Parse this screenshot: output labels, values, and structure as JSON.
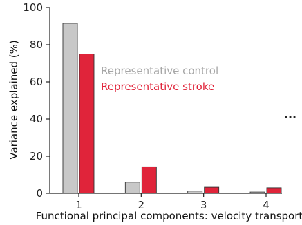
{
  "chart_data": {
    "type": "bar",
    "title": "",
    "xlabel": "Functional principal components: velocity transport",
    "ylabel": "Variance explained (%)",
    "categories": [
      "1",
      "2",
      "3",
      "4"
    ],
    "ylim": [
      0,
      100
    ],
    "yticks": [
      0,
      20,
      40,
      60,
      80,
      100
    ],
    "grid": false,
    "legend_position": "center-right",
    "series": [
      {
        "name": "Representative control",
        "color": "#c8c8c8",
        "values": [
          91.5,
          6.0,
          1.2,
          0.7
        ]
      },
      {
        "name": "Representative stroke",
        "color": "#e0243a",
        "values": [
          75.0,
          14.3,
          3.3,
          3.0
        ]
      }
    ],
    "annotation": "..."
  }
}
